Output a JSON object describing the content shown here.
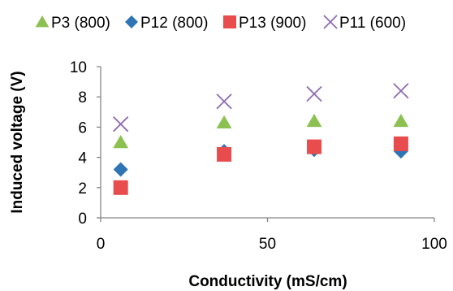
{
  "chart_data": {
    "type": "scatter",
    "xlabel": "Conductivity (mS/cm)",
    "ylabel": "Induced voltage (V)",
    "xlim": [
      0,
      100
    ],
    "ylim": [
      0,
      10
    ],
    "xticks": [
      0,
      50,
      100
    ],
    "yticks": [
      0,
      2,
      4,
      6,
      8,
      10
    ],
    "grid": false,
    "legend_position": "top",
    "series": [
      {
        "name": "P3 (800)",
        "marker": "triangle",
        "color": "#8cc152",
        "x": [
          6,
          37,
          64,
          90
        ],
        "y": [
          5.0,
          6.3,
          6.4,
          6.4
        ]
      },
      {
        "name": "P12 (800)",
        "marker": "diamond",
        "color": "#2e75b6",
        "x": [
          6,
          37,
          64,
          90
        ],
        "y": [
          3.2,
          4.4,
          4.5,
          4.4
        ]
      },
      {
        "name": "P13 (900)",
        "marker": "square",
        "color": "#e84c4c",
        "x": [
          6,
          37,
          64,
          90
        ],
        "y": [
          2.0,
          4.2,
          4.7,
          4.9
        ]
      },
      {
        "name": "P11 (600)",
        "marker": "x",
        "color": "#8e6bb2",
        "x": [
          6,
          37,
          64,
          90
        ],
        "y": [
          6.2,
          7.7,
          8.2,
          8.4
        ]
      }
    ]
  }
}
